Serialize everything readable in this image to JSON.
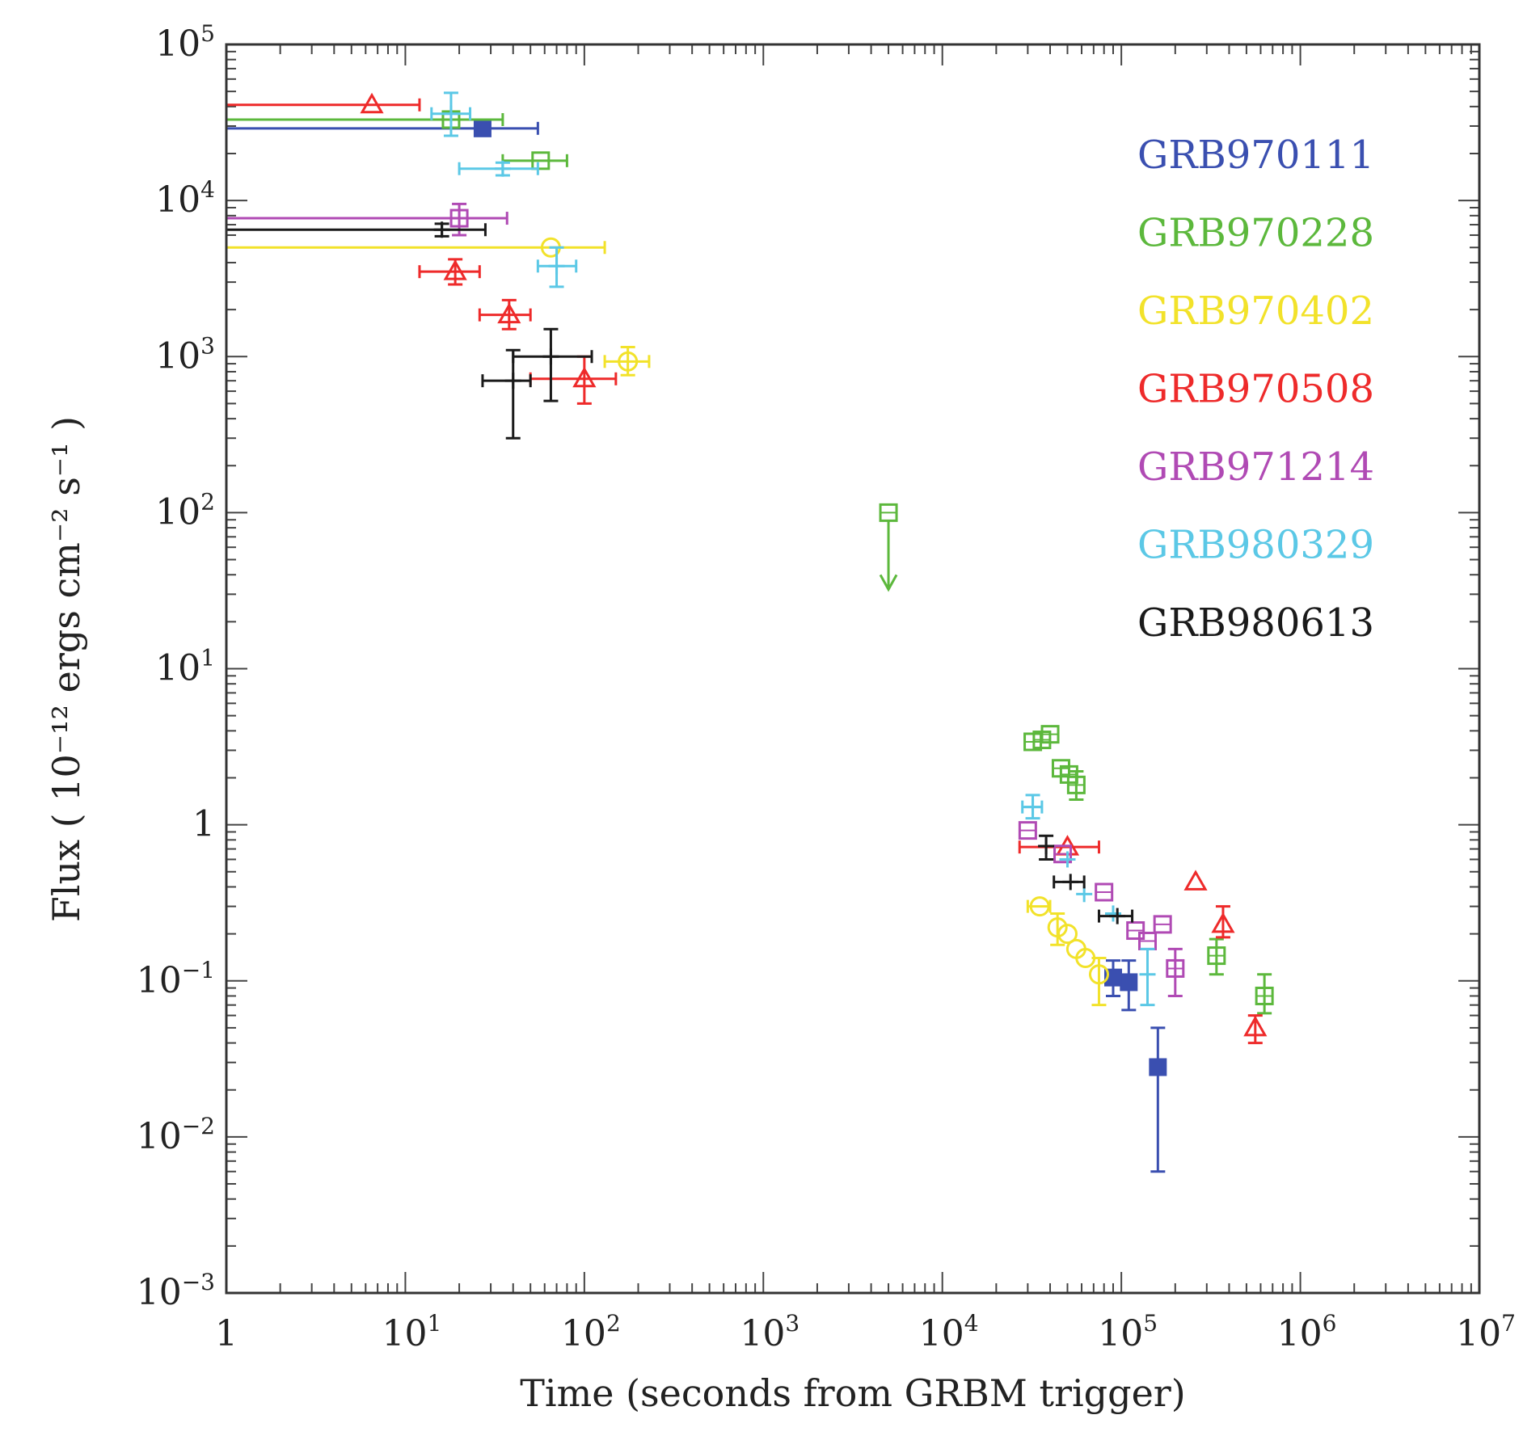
{
  "chart_data": {
    "type": "scatter",
    "xlabel": "Time (seconds from GRBM trigger)",
    "ylabel": "Flux ( 10⁻¹² ergs cm⁻² s⁻¹ )",
    "xscale": "log",
    "yscale": "log",
    "xlim": [
      1,
      10000000
    ],
    "ylim": [
      0.001,
      100000
    ],
    "legend_position": "top-right",
    "x_ticks": [
      {
        "value": 1,
        "base": "1",
        "exp": ""
      },
      {
        "value": 10,
        "base": "10",
        "exp": "1"
      },
      {
        "value": 100,
        "base": "10",
        "exp": "2"
      },
      {
        "value": 1000,
        "base": "10",
        "exp": "3"
      },
      {
        "value": 10000,
        "base": "10",
        "exp": "4"
      },
      {
        "value": 100000,
        "base": "10",
        "exp": "5"
      },
      {
        "value": 1000000,
        "base": "10",
        "exp": "6"
      },
      {
        "value": 10000000,
        "base": "10",
        "exp": "7"
      }
    ],
    "y_ticks": [
      {
        "value": 0.001,
        "base": "10",
        "exp": "−3"
      },
      {
        "value": 0.01,
        "base": "10",
        "exp": "−2"
      },
      {
        "value": 0.1,
        "base": "10",
        "exp": "−1"
      },
      {
        "value": 1,
        "base": "1",
        "exp": ""
      },
      {
        "value": 10,
        "base": "10",
        "exp": "1"
      },
      {
        "value": 100,
        "base": "10",
        "exp": "2"
      },
      {
        "value": 1000,
        "base": "10",
        "exp": "3"
      },
      {
        "value": 10000,
        "base": "10",
        "exp": "4"
      },
      {
        "value": 100000,
        "base": "10",
        "exp": "5"
      }
    ],
    "series": [
      {
        "name": "GRB970111",
        "color": "#3a4fb0",
        "marker": "filled-square",
        "points": [
          {
            "x": 27,
            "y": 29000,
            "xmin": 1,
            "xmax": 55
          },
          {
            "x": 90000,
            "y": 0.105,
            "ylo": 0.08,
            "yhi": 0.135
          },
          {
            "x": 110000,
            "y": 0.098,
            "ylo": 0.065,
            "yhi": 0.135
          },
          {
            "x": 160000,
            "y": 0.028,
            "ylo": 0.006,
            "yhi": 0.05
          }
        ]
      },
      {
        "name": "GRB970228",
        "color": "#5cb83c",
        "marker": "open-square",
        "points": [
          {
            "x": 18,
            "y": 33000,
            "xmin": 1,
            "xmax": 35
          },
          {
            "x": 57,
            "y": 18000,
            "xmin": 35,
            "xmax": 80
          },
          {
            "x": 5000,
            "y": 100,
            "upper_limit": true
          },
          {
            "x": 32000,
            "y": 3.4
          },
          {
            "x": 36000,
            "y": 3.5
          },
          {
            "x": 40000,
            "y": 3.8
          },
          {
            "x": 46000,
            "y": 2.3
          },
          {
            "x": 51000,
            "y": 2.1
          },
          {
            "x": 56000,
            "y": 1.8,
            "ylo": 1.45,
            "yhi": 2.2
          },
          {
            "x": 340000,
            "y": 0.145,
            "ylo": 0.11,
            "yhi": 0.185
          },
          {
            "x": 630000,
            "y": 0.08,
            "ylo": 0.062,
            "yhi": 0.11
          }
        ]
      },
      {
        "name": "GRB970402",
        "color": "#f2e22a",
        "marker": "open-circle",
        "points": [
          {
            "x": 65,
            "y": 5000,
            "xmin": 1,
            "xmax": 130
          },
          {
            "x": 175,
            "y": 930,
            "xmin": 130,
            "xmax": 230,
            "ylo": 760,
            "yhi": 1150
          },
          {
            "x": 35000,
            "y": 0.3,
            "xmin": 30000,
            "xmax": 40000
          },
          {
            "x": 44000,
            "y": 0.22,
            "ylo": 0.17,
            "yhi": 0.27
          },
          {
            "x": 50000,
            "y": 0.2
          },
          {
            "x": 56000,
            "y": 0.16
          },
          {
            "x": 63000,
            "y": 0.14
          },
          {
            "x": 75000,
            "y": 0.11,
            "ylo": 0.07,
            "yhi": 0.14
          }
        ]
      },
      {
        "name": "GRB970508",
        "color": "#ee2a2a",
        "marker": "open-triangle",
        "points": [
          {
            "x": 6.5,
            "y": 41000,
            "xmin": 1,
            "xmax": 12
          },
          {
            "x": 19,
            "y": 3500,
            "xmin": 12,
            "xmax": 26,
            "ylo": 2900,
            "yhi": 4200
          },
          {
            "x": 38,
            "y": 1850,
            "xmin": 26,
            "xmax": 50,
            "ylo": 1500,
            "yhi": 2300
          },
          {
            "x": 100,
            "y": 720,
            "xmin": 50,
            "xmax": 150,
            "ylo": 500,
            "yhi": 1000
          },
          {
            "x": 50000,
            "y": 0.72,
            "xmin": 27000,
            "xmax": 75000
          },
          {
            "x": 260000,
            "y": 0.43
          },
          {
            "x": 370000,
            "y": 0.23,
            "ylo": 0.19,
            "yhi": 0.3
          },
          {
            "x": 560000,
            "y": 0.05,
            "ylo": 0.04,
            "yhi": 0.06
          }
        ]
      },
      {
        "name": "GRB971214",
        "color": "#b04ab4",
        "marker": "open-square",
        "points": [
          {
            "x": 20,
            "y": 7700,
            "xmin": 1,
            "xmax": 37,
            "ylo": 6000,
            "yhi": 9500
          },
          {
            "x": 30000,
            "y": 0.92
          },
          {
            "x": 47000,
            "y": 0.65
          },
          {
            "x": 80000,
            "y": 0.37
          },
          {
            "x": 120000,
            "y": 0.21
          },
          {
            "x": 140000,
            "y": 0.18
          },
          {
            "x": 170000,
            "y": 0.23
          },
          {
            "x": 200000,
            "y": 0.12,
            "ylo": 0.08,
            "yhi": 0.16
          }
        ]
      },
      {
        "name": "GRB980329",
        "color": "#5bc8e6",
        "marker": "cross",
        "points": [
          {
            "x": 18,
            "y": 36000,
            "xmin": 14,
            "xmax": 23,
            "ylo": 26000,
            "yhi": 49000
          },
          {
            "x": 35,
            "y": 16000,
            "xmin": 20,
            "xmax": 55,
            "ylo": 14500,
            "yhi": 17500
          },
          {
            "x": 70,
            "y": 3800,
            "xmin": 55,
            "xmax": 90,
            "ylo": 2800,
            "yhi": 5000
          },
          {
            "x": 32000,
            "y": 1.3,
            "xmin": 28000,
            "xmax": 36000,
            "ylo": 1.1,
            "yhi": 1.55
          },
          {
            "x": 50000,
            "y": 0.6
          },
          {
            "x": 62000,
            "y": 0.36
          },
          {
            "x": 90000,
            "y": 0.27
          },
          {
            "x": 140000,
            "y": 0.11,
            "ylo": 0.07,
            "yhi": 0.16
          }
        ]
      },
      {
        "name": "GRB980613",
        "color": "#1a1a1a",
        "marker": "cross",
        "points": [
          {
            "x": 16,
            "y": 6500,
            "xmin": 1,
            "xmax": 28,
            "ylo": 5900,
            "yhi": 7100
          },
          {
            "x": 40,
            "y": 700,
            "xmin": 27,
            "xmax": 50,
            "ylo": 300,
            "yhi": 1100
          },
          {
            "x": 65,
            "y": 1000,
            "xmin": 40,
            "xmax": 110,
            "ylo": 520,
            "yhi": 1500
          },
          {
            "x": 38000,
            "y": 0.73,
            "ylo": 0.6,
            "yhi": 0.85
          },
          {
            "x": 52000,
            "y": 0.43,
            "xmin": 42000,
            "xmax": 62000
          },
          {
            "x": 95000,
            "y": 0.26,
            "xmin": 75000,
            "xmax": 115000
          }
        ]
      }
    ]
  }
}
